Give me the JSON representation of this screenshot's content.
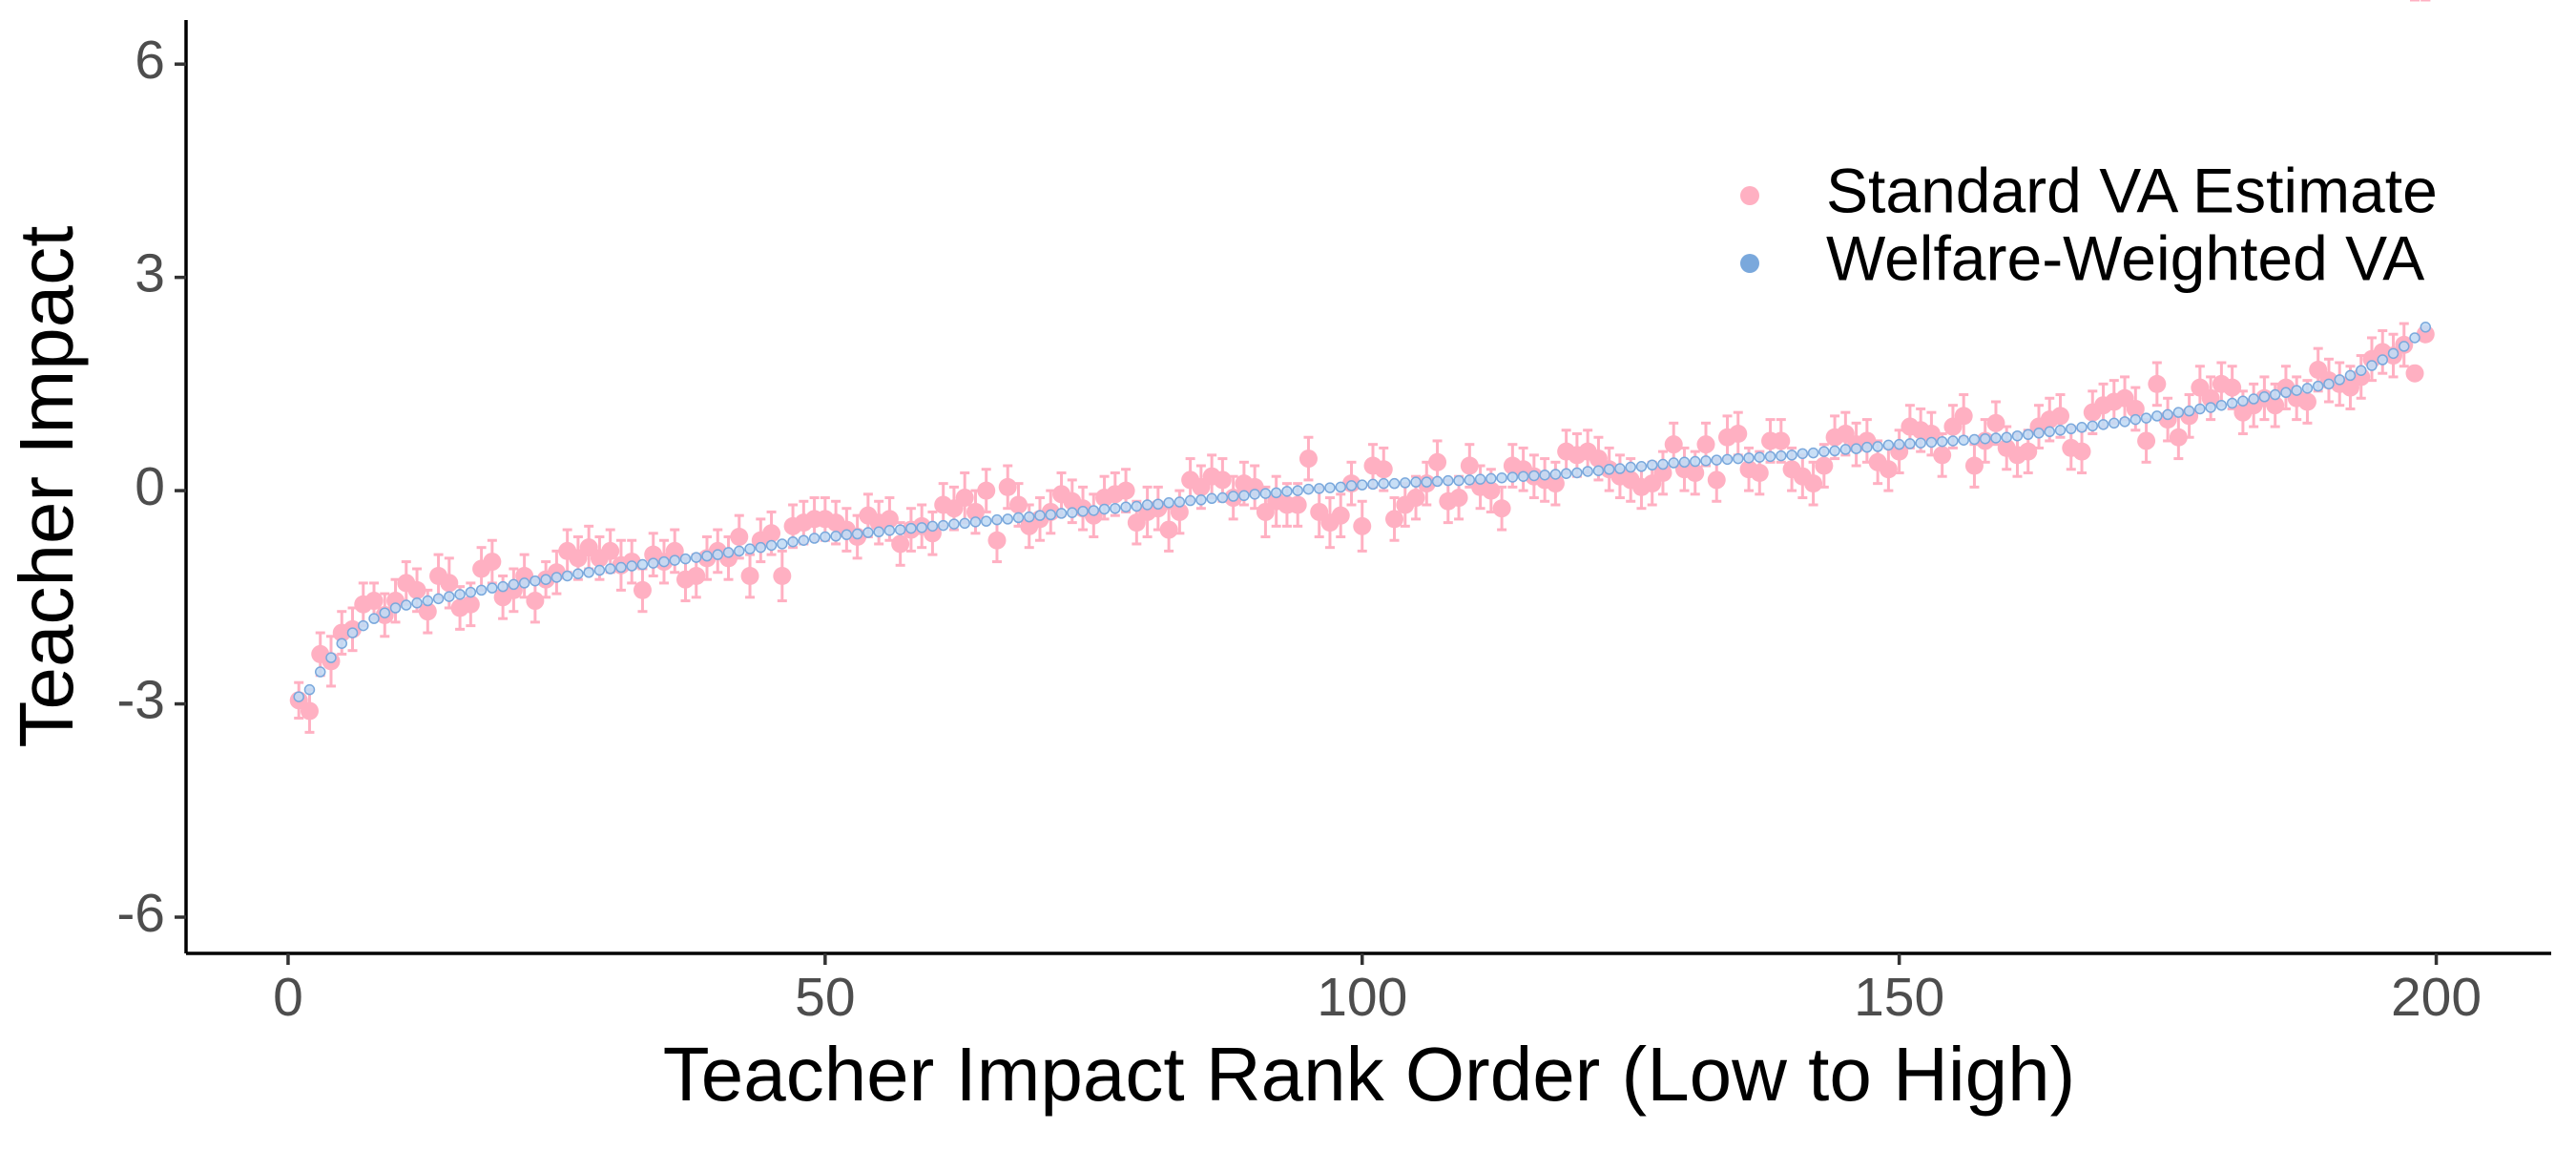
{
  "chart_data": {
    "type": "scatter",
    "x_label": "Teacher Impact Rank Order (Low to High)",
    "y_label": "Teacher Impact",
    "xlim": [
      -9.5,
      210.7
    ],
    "xticks": [
      0,
      50,
      100,
      150,
      200
    ],
    "ylim": [
      -6.51,
      6.62
    ],
    "yticks": [
      -6,
      -3,
      0,
      3,
      6
    ],
    "grid": false,
    "legend_position": "top-right",
    "x": [
      1,
      2,
      3,
      4,
      5,
      6,
      7,
      8,
      9,
      10,
      11,
      12,
      13,
      14,
      15,
      16,
      17,
      18,
      19,
      20,
      21,
      22,
      23,
      24,
      25,
      26,
      27,
      28,
      29,
      30,
      31,
      32,
      33,
      34,
      35,
      36,
      37,
      38,
      39,
      40,
      41,
      42,
      43,
      44,
      45,
      46,
      47,
      48,
      49,
      50,
      51,
      52,
      53,
      54,
      55,
      56,
      57,
      58,
      59,
      60,
      61,
      62,
      63,
      64,
      65,
      66,
      67,
      68,
      69,
      70,
      71,
      72,
      73,
      74,
      75,
      76,
      77,
      78,
      79,
      80,
      81,
      82,
      83,
      84,
      85,
      86,
      87,
      88,
      89,
      90,
      91,
      92,
      93,
      94,
      95,
      96,
      97,
      98,
      99,
      100,
      101,
      102,
      103,
      104,
      105,
      106,
      107,
      108,
      109,
      110,
      111,
      112,
      113,
      114,
      115,
      116,
      117,
      118,
      119,
      120,
      121,
      122,
      123,
      124,
      125,
      126,
      127,
      128,
      129,
      130,
      131,
      132,
      133,
      134,
      135,
      136,
      137,
      138,
      139,
      140,
      141,
      142,
      143,
      144,
      145,
      146,
      147,
      148,
      149,
      150,
      151,
      152,
      153,
      154,
      155,
      156,
      157,
      158,
      159,
      160,
      161,
      162,
      163,
      164,
      165,
      166,
      167,
      168,
      169,
      170,
      171,
      172,
      173,
      174,
      175,
      176,
      177,
      178,
      179,
      180,
      181,
      182,
      183,
      184,
      185,
      186,
      187,
      188,
      189,
      190,
      191,
      192,
      193,
      194,
      195,
      196,
      197,
      198,
      199
    ],
    "series": [
      {
        "name": "Standard VA Estimate",
        "color": "#ffb0c2",
        "values": [
          -2.95,
          -3.1,
          -2.3,
          -2.4,
          -2.0,
          -1.95,
          -1.6,
          -1.55,
          -1.75,
          -1.55,
          -1.3,
          -1.4,
          -1.7,
          -1.2,
          -1.3,
          -1.65,
          -1.6,
          -1.1,
          -1.0,
          -1.5,
          -1.4,
          -1.2,
          -1.55,
          -1.25,
          -1.15,
          -0.85,
          -0.95,
          -0.8,
          -0.95,
          -0.85,
          -1.05,
          -1.0,
          -1.4,
          -0.9,
          -1.0,
          -0.85,
          -1.25,
          -1.2,
          -0.95,
          -0.85,
          -0.95,
          -0.65,
          -1.2,
          -0.7,
          -0.6,
          -1.2,
          -0.5,
          -0.45,
          -0.4,
          -0.4,
          -0.45,
          -0.55,
          -0.65,
          -0.35,
          -0.45,
          -0.4,
          -0.75,
          -0.55,
          -0.5,
          -0.6,
          -0.2,
          -0.25,
          -0.1,
          -0.3,
          0.0,
          -0.7,
          0.05,
          -0.2,
          -0.5,
          -0.4,
          -0.3,
          -0.05,
          -0.15,
          -0.25,
          -0.35,
          -0.1,
          -0.05,
          0.0,
          -0.45,
          -0.3,
          -0.25,
          -0.55,
          -0.3,
          0.15,
          0.05,
          0.2,
          0.15,
          -0.1,
          0.1,
          0.05,
          -0.3,
          -0.15,
          -0.2,
          -0.2,
          0.45,
          -0.3,
          -0.45,
          -0.35,
          0.1,
          -0.5,
          0.35,
          0.3,
          -0.4,
          -0.2,
          -0.1,
          0.1,
          0.4,
          -0.15,
          -0.1,
          0.35,
          0.05,
          0.0,
          -0.25,
          0.35,
          0.3,
          0.2,
          0.15,
          0.1,
          0.55,
          0.5,
          0.55,
          0.45,
          0.3,
          0.2,
          0.15,
          0.05,
          0.1,
          0.25,
          0.65,
          0.3,
          0.25,
          0.65,
          0.15,
          0.75,
          0.8,
          0.3,
          0.25,
          0.7,
          0.7,
          0.3,
          0.2,
          0.1,
          0.35,
          0.75,
          0.8,
          0.65,
          0.7,
          0.4,
          0.3,
          0.55,
          0.9,
          0.85,
          0.8,
          0.5,
          0.9,
          1.05,
          0.35,
          0.7,
          0.95,
          0.6,
          0.5,
          0.55,
          0.9,
          1.0,
          1.05,
          0.6,
          0.55,
          1.1,
          1.2,
          1.25,
          1.3,
          1.15,
          0.7,
          1.5,
          1.0,
          0.75,
          1.05,
          1.45,
          1.3,
          1.5,
          1.45,
          1.1,
          1.2,
          1.3,
          1.2,
          1.45,
          1.3,
          1.25,
          1.7,
          1.55,
          1.5,
          1.45,
          1.6,
          1.85,
          1.95,
          1.9,
          2.05,
          1.65,
          2.2
        ],
        "errors": [
          0.25,
          0.3,
          0.3,
          0.35,
          0.3,
          0.3,
          0.3,
          0.25,
          0.3,
          0.3,
          0.3,
          0.3,
          0.3,
          0.3,
          0.35,
          0.3,
          0.3,
          0.3,
          0.3,
          0.3,
          0.3,
          0.3,
          0.3,
          0.25,
          0.3,
          0.3,
          0.3,
          0.3,
          0.3,
          0.3,
          0.35,
          0.3,
          0.3,
          0.3,
          0.3,
          0.3,
          0.3,
          0.3,
          0.3,
          0.3,
          0.3,
          0.3,
          0.3,
          0.3,
          0.3,
          0.35,
          0.3,
          0.3,
          0.3,
          0.3,
          0.3,
          0.3,
          0.3,
          0.3,
          0.3,
          0.3,
          0.3,
          0.3,
          0.3,
          0.3,
          0.3,
          0.3,
          0.35,
          0.3,
          0.3,
          0.3,
          0.3,
          0.3,
          0.3,
          0.3,
          0.3,
          0.3,
          0.3,
          0.3,
          0.3,
          0.3,
          0.3,
          0.3,
          0.3,
          0.35,
          0.3,
          0.3,
          0.3,
          0.3,
          0.3,
          0.3,
          0.3,
          0.3,
          0.3,
          0.3,
          0.35,
          0.35,
          0.3,
          0.3,
          0.3,
          0.35,
          0.35,
          0.3,
          0.3,
          0.35,
          0.3,
          0.3,
          0.3,
          0.3,
          0.3,
          0.3,
          0.3,
          0.3,
          0.3,
          0.3,
          0.3,
          0.3,
          0.3,
          0.3,
          0.3,
          0.3,
          0.3,
          0.3,
          0.3,
          0.3,
          0.3,
          0.3,
          0.3,
          0.3,
          0.3,
          0.3,
          0.3,
          0.3,
          0.3,
          0.3,
          0.3,
          0.3,
          0.3,
          0.3,
          0.3,
          0.3,
          0.3,
          0.3,
          0.3,
          0.3,
          0.3,
          0.3,
          0.3,
          0.3,
          0.3,
          0.3,
          0.3,
          0.3,
          0.3,
          0.3,
          0.3,
          0.3,
          0.3,
          0.3,
          0.3,
          0.3,
          0.3,
          0.3,
          0.3,
          0.3,
          0.3,
          0.3,
          0.3,
          0.3,
          0.3,
          0.3,
          0.3,
          0.3,
          0.3,
          0.3,
          0.3,
          0.3,
          0.3,
          0.3,
          0.3,
          0.3,
          0.3,
          0.3,
          0.3,
          0.3,
          0.3,
          0.3,
          0.3,
          0.3,
          0.3,
          0.3,
          0.3,
          0.3,
          0.3,
          0.3,
          0.3,
          0.3,
          0.3,
          0.3,
          0.3,
          0.3,
          0.3
        ]
      },
      {
        "name": "Welfare-Weighted VA",
        "color": "#7aa8dc",
        "values": [
          -2.9,
          -2.8,
          -2.55,
          -2.35,
          -2.15,
          -2.0,
          -1.9,
          -1.8,
          -1.72,
          -1.65,
          -1.61,
          -1.58,
          -1.55,
          -1.52,
          -1.49,
          -1.46,
          -1.43,
          -1.4,
          -1.37,
          -1.35,
          -1.32,
          -1.3,
          -1.27,
          -1.25,
          -1.22,
          -1.2,
          -1.17,
          -1.15,
          -1.12,
          -1.1,
          -1.08,
          -1.06,
          -1.04,
          -1.02,
          -1.0,
          -0.98,
          -0.96,
          -0.94,
          -0.92,
          -0.9,
          -0.87,
          -0.85,
          -0.82,
          -0.8,
          -0.77,
          -0.75,
          -0.72,
          -0.7,
          -0.67,
          -0.65,
          -0.64,
          -0.62,
          -0.61,
          -0.59,
          -0.58,
          -0.56,
          -0.55,
          -0.53,
          -0.52,
          -0.5,
          -0.49,
          -0.47,
          -0.46,
          -0.44,
          -0.43,
          -0.41,
          -0.4,
          -0.38,
          -0.37,
          -0.35,
          -0.34,
          -0.32,
          -0.31,
          -0.29,
          -0.28,
          -0.26,
          -0.25,
          -0.23,
          -0.22,
          -0.2,
          -0.19,
          -0.17,
          -0.16,
          -0.14,
          -0.13,
          -0.11,
          -0.1,
          -0.08,
          -0.07,
          -0.05,
          -0.04,
          -0.03,
          -0.01,
          0.0,
          0.02,
          0.03,
          0.04,
          0.05,
          0.07,
          0.08,
          0.09,
          0.1,
          0.1,
          0.11,
          0.12,
          0.12,
          0.13,
          0.14,
          0.14,
          0.15,
          0.16,
          0.17,
          0.18,
          0.19,
          0.2,
          0.21,
          0.22,
          0.23,
          0.24,
          0.25,
          0.27,
          0.28,
          0.3,
          0.31,
          0.33,
          0.34,
          0.36,
          0.37,
          0.39,
          0.4,
          0.41,
          0.42,
          0.43,
          0.44,
          0.45,
          0.46,
          0.47,
          0.48,
          0.49,
          0.5,
          0.52,
          0.53,
          0.55,
          0.56,
          0.58,
          0.59,
          0.61,
          0.62,
          0.64,
          0.65,
          0.66,
          0.67,
          0.68,
          0.69,
          0.7,
          0.71,
          0.72,
          0.73,
          0.74,
          0.75,
          0.77,
          0.79,
          0.81,
          0.83,
          0.85,
          0.87,
          0.89,
          0.91,
          0.93,
          0.95,
          0.97,
          1.0,
          1.02,
          1.05,
          1.07,
          1.1,
          1.12,
          1.15,
          1.17,
          1.2,
          1.23,
          1.26,
          1.29,
          1.32,
          1.35,
          1.38,
          1.41,
          1.44,
          1.47,
          1.5,
          1.56,
          1.62,
          1.69,
          1.76,
          1.84,
          1.93,
          2.03,
          2.15,
          2.3
        ]
      }
    ]
  }
}
